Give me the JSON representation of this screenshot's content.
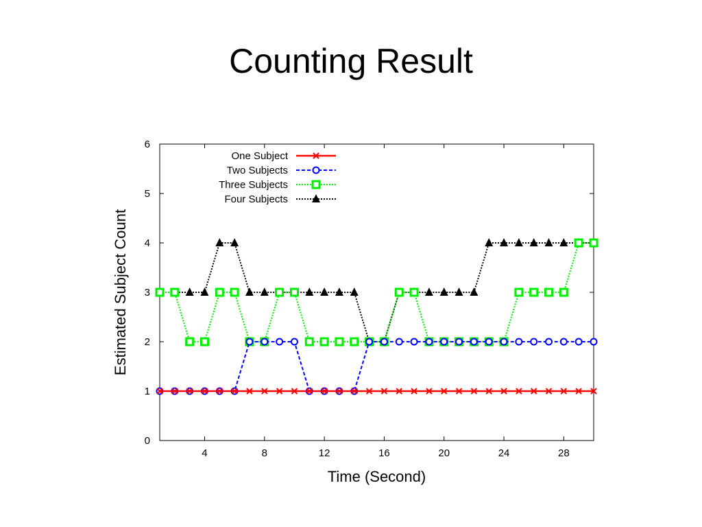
{
  "slide": {
    "title": "Counting Result"
  },
  "chart_data": {
    "type": "line",
    "title": "",
    "xlabel": "Time (Second)",
    "ylabel": "Estimated Subject Count",
    "xlim": [
      1,
      30
    ],
    "ylim": [
      0,
      6
    ],
    "xticks": [
      4,
      8,
      12,
      16,
      20,
      24,
      28
    ],
    "yticks": [
      0,
      1,
      2,
      3,
      4,
      5,
      6
    ],
    "legend_position": "top-left",
    "x": [
      1,
      2,
      3,
      4,
      5,
      6,
      7,
      8,
      9,
      10,
      11,
      12,
      13,
      14,
      15,
      16,
      17,
      18,
      19,
      20,
      21,
      22,
      23,
      24,
      25,
      26,
      27,
      28,
      29,
      30
    ],
    "series": [
      {
        "name": "One Subject",
        "color": "#ff0000",
        "marker": "x",
        "dash": "solid",
        "values": [
          1,
          1,
          1,
          1,
          1,
          1,
          1,
          1,
          1,
          1,
          1,
          1,
          1,
          1,
          1,
          1,
          1,
          1,
          1,
          1,
          1,
          1,
          1,
          1,
          1,
          1,
          1,
          1,
          1,
          1
        ]
      },
      {
        "name": "Two Subjects",
        "color": "#0000ff",
        "marker": "circle",
        "dash": "dashed",
        "values": [
          1,
          1,
          1,
          1,
          1,
          1,
          2,
          2,
          2,
          2,
          1,
          1,
          1,
          1,
          2,
          2,
          2,
          2,
          2,
          2,
          2,
          2,
          2,
          2,
          2,
          2,
          2,
          2,
          2,
          2
        ]
      },
      {
        "name": "Three Subjects",
        "color": "#00ee00",
        "marker": "square",
        "dash": "dotted",
        "values": [
          3,
          3,
          2,
          2,
          3,
          3,
          2,
          2,
          3,
          3,
          2,
          2,
          2,
          2,
          2,
          2,
          3,
          3,
          2,
          2,
          2,
          2,
          2,
          2,
          3,
          3,
          3,
          3,
          4,
          4
        ]
      },
      {
        "name": "Four Subjects",
        "color": "#000000",
        "marker": "triangle",
        "dash": "dotted",
        "values": [
          3,
          3,
          3,
          3,
          4,
          4,
          3,
          3,
          3,
          3,
          3,
          3,
          3,
          3,
          2,
          2,
          3,
          3,
          3,
          3,
          3,
          3,
          4,
          4,
          4,
          4,
          4,
          4,
          4,
          4
        ]
      }
    ]
  }
}
